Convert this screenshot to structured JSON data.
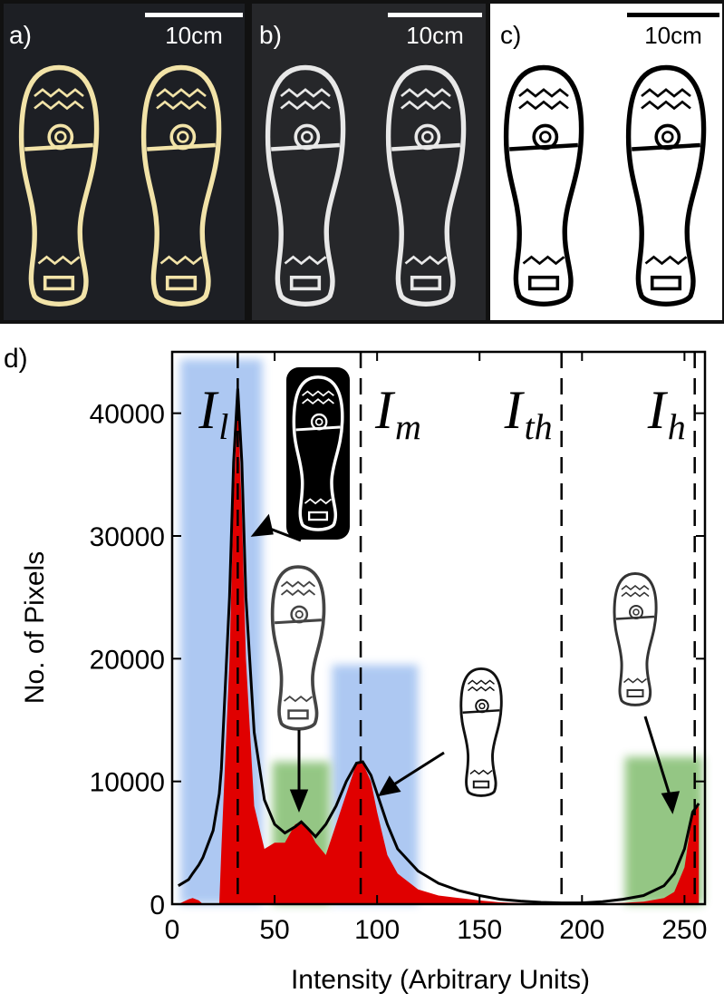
{
  "panels": [
    {
      "label": "a)",
      "scale": "10cm"
    },
    {
      "label": "b)",
      "scale": "10cm"
    },
    {
      "label": "c)",
      "scale": "10cm"
    }
  ],
  "chart_data": {
    "type": "line",
    "panel_label": "d)",
    "x_label": "Intensity (Arbitrary Units)",
    "y_label": "No. of Pixels",
    "xlim": [
      0,
      260
    ],
    "ylim": [
      0,
      45000
    ],
    "xticks": [
      0,
      50,
      100,
      150,
      200,
      250
    ],
    "yticks": [
      0,
      10000,
      20000,
      30000,
      40000
    ],
    "x": [
      3,
      8,
      10,
      13,
      15,
      20,
      23,
      24,
      28,
      30,
      32,
      34,
      36,
      40,
      45,
      50,
      55,
      60,
      63,
      66,
      70,
      75,
      80,
      85,
      90,
      93,
      97,
      100,
      105,
      110,
      120,
      130,
      140,
      150,
      160,
      170,
      180,
      190,
      200,
      210,
      220,
      230,
      240,
      245,
      250,
      254,
      257
    ],
    "series": [
      {
        "color": "#e00000",
        "fill": true,
        "values": [
          0,
          400,
          500,
          300,
          0,
          0,
          0,
          4500,
          20000,
          33000,
          41000,
          32000,
          20000,
          8000,
          4500,
          5000,
          5000,
          6500,
          6700,
          6300,
          5000,
          4000,
          6500,
          9000,
          11500,
          11500,
          10000,
          7500,
          4000,
          2500,
          1200,
          700,
          500,
          300,
          150,
          80,
          50,
          30,
          30,
          50,
          100,
          200,
          500,
          1000,
          3000,
          7500,
          8000
        ]
      },
      {
        "color": "#000000",
        "fill": false,
        "values": [
          1500,
          2000,
          2500,
          3200,
          3800,
          6000,
          9000,
          11000,
          25000,
          36000,
          42000,
          36000,
          25000,
          14000,
          8500,
          6500,
          5800,
          6300,
          6700,
          6200,
          5500,
          6500,
          8000,
          10000,
          11500,
          11600,
          10500,
          9000,
          6500,
          4500,
          2700,
          1700,
          1100,
          700,
          400,
          250,
          150,
          100,
          100,
          200,
          400,
          700,
          1500,
          2500,
          4500,
          7500,
          8200
        ]
      }
    ],
    "bands": [
      {
        "x": [
          4,
          44
        ],
        "top": 44400,
        "color": "#a9c6f2"
      },
      {
        "x": [
          78,
          120
        ],
        "top": 19500,
        "color": "#a9c6f2"
      },
      {
        "x": [
          49,
          77
        ],
        "top": 11600,
        "color": "#8fc47e"
      },
      {
        "x": [
          221,
          259
        ],
        "top": 12000,
        "color": "#8fc47e"
      }
    ],
    "thresholds": [
      {
        "x": 32,
        "symbol": "I",
        "subscript": "l"
      },
      {
        "x": 92,
        "symbol": "I",
        "subscript": "m"
      },
      {
        "x": 190,
        "symbol": "I",
        "subscript": "th"
      },
      {
        "x": 255,
        "symbol": "I",
        "subscript": "h"
      }
    ]
  }
}
